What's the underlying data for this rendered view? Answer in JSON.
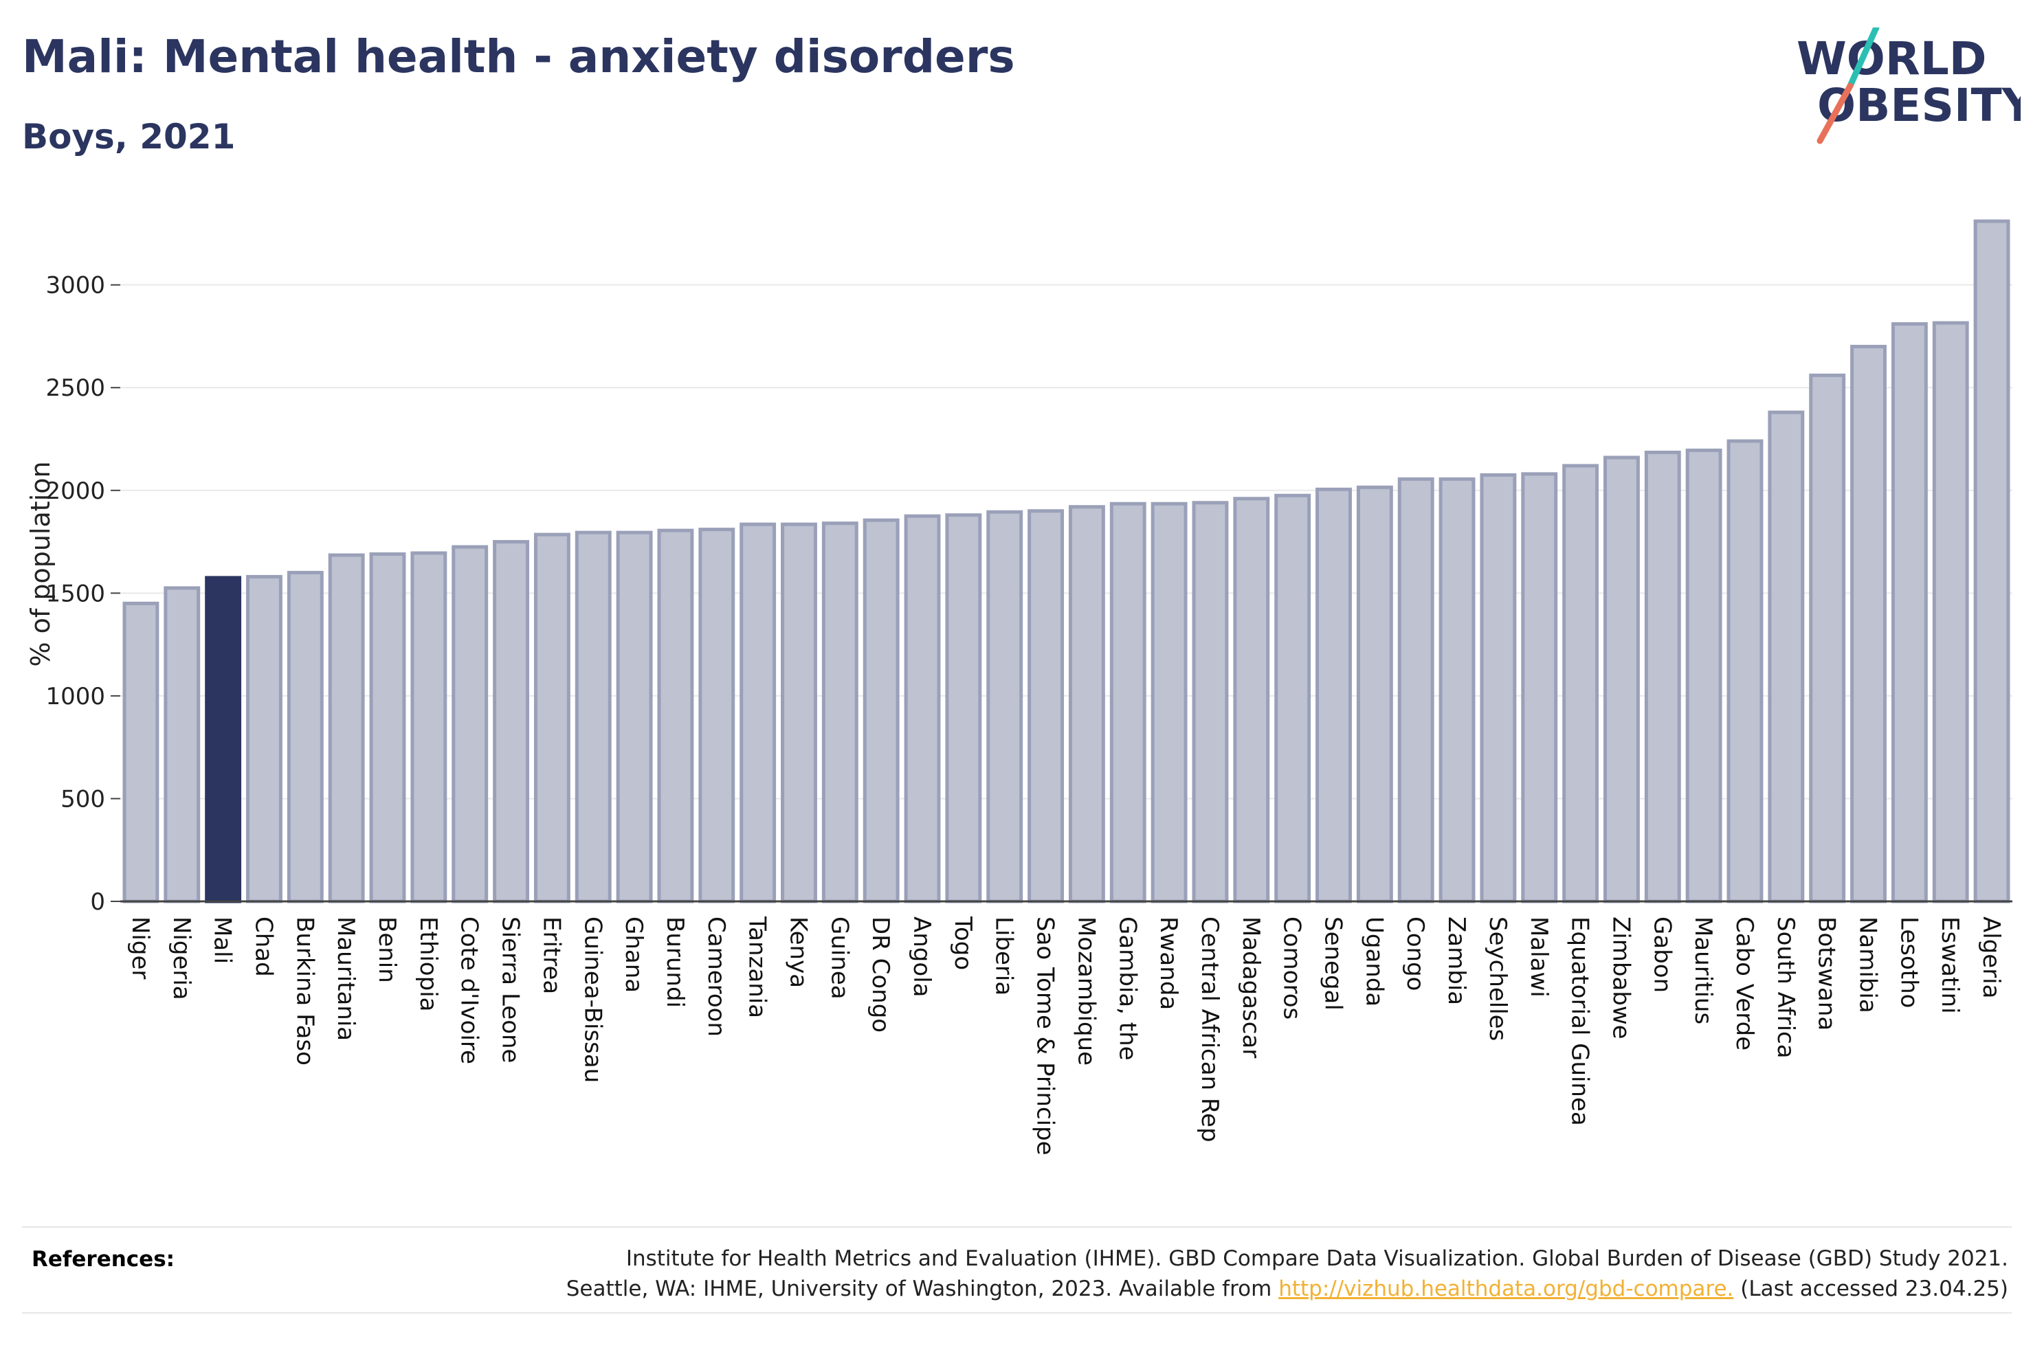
{
  "header": {
    "title": "Mali: Mental health - anxiety disorders",
    "subtitle": "Boys, 2021"
  },
  "logo": {
    "line1": "WORLD",
    "line2": "OBESITY"
  },
  "colors": {
    "highlight": "#2b3560",
    "bar_fill": "#bec2d1",
    "bar_stroke": "#9aa0b8",
    "logo_teal": "#2bbfb3",
    "logo_coral": "#e8715a",
    "link": "#f2b134"
  },
  "chart_data": {
    "type": "bar",
    "title": "Mali: Mental health - anxiety disorders",
    "subtitle": "Boys, 2021",
    "xlabel": "",
    "ylabel": "% of population",
    "ylim": [
      0,
      3350
    ],
    "yticks": [
      0,
      500,
      1000,
      1500,
      2000,
      2500,
      3000
    ],
    "grid": true,
    "highlight": "Mali",
    "categories": [
      "Niger",
      "Nigeria",
      "Mali",
      "Chad",
      "Burkina Faso",
      "Mauritania",
      "Benin",
      "Ethiopia",
      "Cote d'Ivoire",
      "Sierra Leone",
      "Eritrea",
      "Guinea-Bissau",
      "Ghana",
      "Burundi",
      "Cameroon",
      "Tanzania",
      "Kenya",
      "Guinea",
      "DR Congo",
      "Angola",
      "Togo",
      "Liberia",
      "Sao Tome & Principe",
      "Mozambique",
      "Gambia, the",
      "Rwanda",
      "Central African Rep",
      "Madagascar",
      "Comoros",
      "Senegal",
      "Uganda",
      "Congo",
      "Zambia",
      "Seychelles",
      "Malawi",
      "Equatorial Guinea",
      "Zimbabwe",
      "Gabon",
      "Mauritius",
      "Cabo Verde",
      "South Africa",
      "Botswana",
      "Namibia",
      "Lesotho",
      "Eswatini",
      "Algeria"
    ],
    "values": [
      1450,
      1525,
      1575,
      1580,
      1600,
      1685,
      1690,
      1695,
      1725,
      1750,
      1785,
      1795,
      1795,
      1805,
      1810,
      1835,
      1835,
      1840,
      1855,
      1875,
      1880,
      1895,
      1900,
      1920,
      1935,
      1935,
      1940,
      1960,
      1975,
      2005,
      2015,
      2055,
      2055,
      2075,
      2080,
      2120,
      2160,
      2185,
      2195,
      2240,
      2380,
      2560,
      2700,
      2810,
      2815,
      3310
    ]
  },
  "references": {
    "label": "References:",
    "line1": "Institute for Health Metrics and Evaluation (IHME). GBD Compare Data Visualization. Global Burden of Disease (GBD) Study 2021.",
    "line2_prefix": "Seattle, WA: IHME, University of Washington, 2023. Available from ",
    "link": "http://vizhub.healthdata.org/gbd-compare.",
    "line2_suffix": " (Last accessed 23.04.25)"
  }
}
